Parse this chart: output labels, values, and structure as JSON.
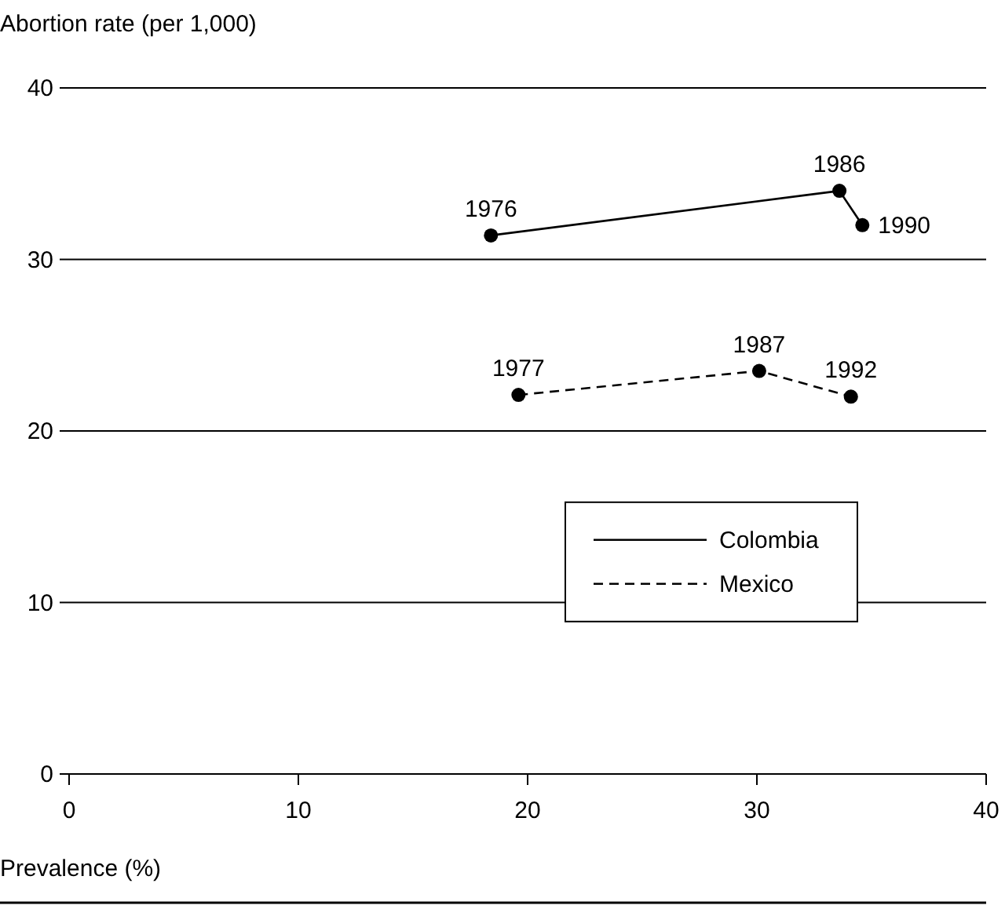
{
  "chart_data": {
    "type": "line",
    "ylabel": "Abortion rate (per 1,000)",
    "xlabel": "Prevalence (%)",
    "xlim": [
      0,
      40
    ],
    "xticks": [
      0,
      10,
      20,
      30,
      40
    ],
    "ylim": [
      0,
      40
    ],
    "yticks": [
      0,
      10,
      20,
      30,
      40
    ],
    "grid": "y",
    "legend": "right",
    "marker": "circle",
    "series": [
      {
        "name": "Colombia",
        "color": "#000000",
        "line_style": "solid",
        "x": [
          18.4,
          33.6,
          34.6
        ],
        "values": [
          31.4,
          34.0,
          32.0
        ]
      },
      {
        "name": "Mexico",
        "color": "#000000",
        "line_style": "dashed",
        "x": [
          19.6,
          30.1,
          34.1
        ],
        "values": [
          22.1,
          23.5,
          22.0
        ]
      }
    ],
    "annotations": [
      {
        "text": "1976",
        "x": 18.4,
        "y": 31.4
      },
      {
        "text": "1986",
        "x": 33.6,
        "y": 34.0
      },
      {
        "text": "1990",
        "x": 34.6,
        "y": 32.0
      },
      {
        "text": "1977",
        "x": 19.6,
        "y": 22.1
      },
      {
        "text": "1987",
        "x": 30.1,
        "y": 23.5
      },
      {
        "text": "1992",
        "x": 34.1,
        "y": 22.0
      }
    ]
  }
}
